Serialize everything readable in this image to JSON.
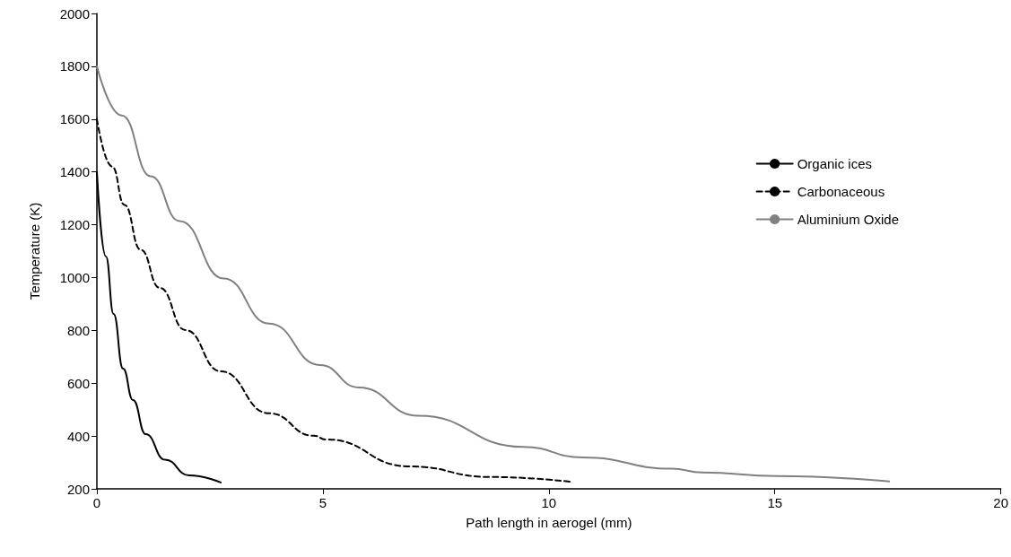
{
  "chart_data": {
    "type": "line",
    "xlabel": "Path length in aerogel (mm)",
    "ylabel": "Temperature (K)",
    "xlim": [
      0,
      20
    ],
    "xticks": [
      0,
      5,
      10,
      15,
      20
    ],
    "ylim": [
      200,
      2000
    ],
    "yticks": [
      200,
      400,
      600,
      800,
      {
        "value": 1000,
        "label": "1000"
      },
      {
        "value": 1200,
        "label": "1200"
      },
      {
        "value": 1400,
        "label": "1400"
      },
      {
        "value": 1600,
        "label": "1600"
      },
      {
        "value": 1800,
        "label": "1800"
      },
      {
        "value": 2000,
        "label": "2000"
      }
    ],
    "grid": false,
    "legend": "right",
    "marker": "none",
    "series": [
      {
        "name": "Organic ices",
        "color": "#000000",
        "line_style": "solid",
        "x": [
          0,
          0.2,
          0.37,
          0.58,
          0.8,
          1.08,
          1.51,
          2.04,
          2.74
        ],
        "values": [
          1400,
          1080,
          862,
          655,
          536,
          407,
          310,
          251,
          224
        ]
      },
      {
        "name": "Carbonaceous",
        "color": "#000000",
        "line_style": "dashed",
        "x": [
          0,
          0.34,
          0.61,
          0.97,
          1.39,
          1.96,
          2.74,
          3.81,
          4.8,
          5.07,
          6.92,
          8.7,
          10.52
        ],
        "values": [
          1600,
          1420,
          1275,
          1105,
          961,
          801,
          645,
          486,
          401,
          387,
          285,
          245,
          226
        ]
      },
      {
        "name": "Aluminium Oxide",
        "color": "#808080",
        "line_style": "solid",
        "x": [
          0,
          0.55,
          1.19,
          1.83,
          2.81,
          3.81,
          4.94,
          5.79,
          7.11,
          9.43,
          10.75,
          12.74,
          13.39,
          15.05,
          17.53
        ],
        "values": [
          1800,
          1614,
          1384,
          1214,
          996,
          826,
          669,
          584,
          477,
          359,
          319,
          276,
          262,
          248,
          228
        ]
      }
    ]
  }
}
